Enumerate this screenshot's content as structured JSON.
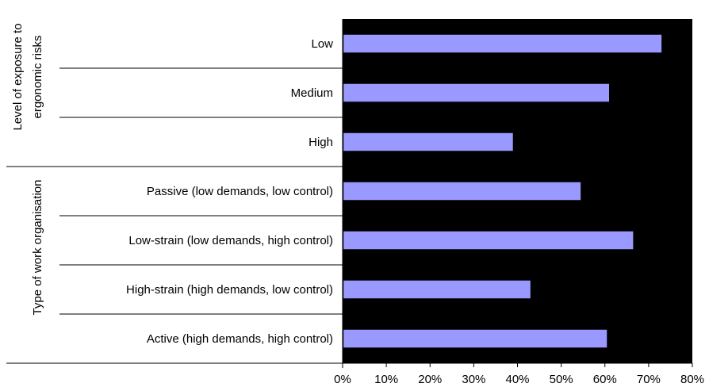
{
  "chart_data": {
    "type": "bar",
    "orientation": "horizontal",
    "categories": [
      "Low",
      "Medium",
      "High",
      "Passive (low demands, low control)",
      "Low-strain (low demands, high control)",
      "High-strain (high demands, low control)",
      "Active (high demands, high control)"
    ],
    "values": [
      0.73,
      0.61,
      0.39,
      0.545,
      0.665,
      0.43,
      0.605
    ],
    "groups": [
      {
        "label_lines": [
          "Level of exposure to",
          "ergonomic risks"
        ],
        "categories": [
          "Low",
          "Medium",
          "High"
        ]
      },
      {
        "label_lines": [
          "Type of work organisation"
        ],
        "categories": [
          "Passive (low demands, low control)",
          "Low-strain (low demands, high control)",
          "High-strain (high demands, low control)",
          "Active (high demands, high control)"
        ]
      }
    ],
    "xlim": [
      0,
      0.8
    ],
    "xticks": [
      0,
      0.1,
      0.2,
      0.3,
      0.4,
      0.5,
      0.6,
      0.7,
      0.8
    ],
    "xtick_labels": [
      "0%",
      "10%",
      "20%",
      "30%",
      "40%",
      "50%",
      "60%",
      "70%",
      "80%"
    ],
    "title": "",
    "xlabel": "",
    "ylabel": "",
    "grid": false,
    "legend": "none",
    "colors": {
      "bar": "#9999ff",
      "plot_background": "#000000",
      "lines": "#000000"
    }
  }
}
